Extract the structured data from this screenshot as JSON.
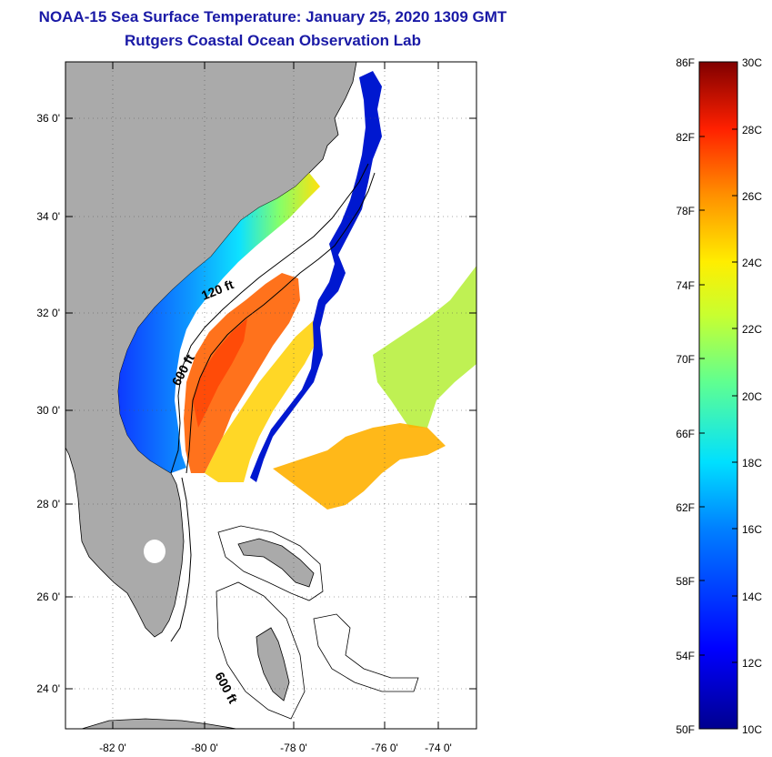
{
  "header": {
    "title": "NOAA-15 Sea Surface Temperature:  January 25, 2020 1309 GMT",
    "subtitle": "Rutgers Coastal Ocean Observation Lab"
  },
  "map": {
    "lat_labels": [
      "36 0'",
      "34 0'",
      "32 0'",
      "30 0'",
      "28 0'",
      "26 0'",
      "24 0'"
    ],
    "lon_labels": [
      "-82 0'",
      "-80 0'",
      "-78 0'",
      "-76 0'",
      "-74 0'"
    ],
    "contours": {
      "c120": "120 ft",
      "c600_a": "600 ft",
      "c600_b": "600 ft"
    },
    "colors": {
      "land": "#aaaaaa",
      "ocean": "#ffffff",
      "grid": "#555555"
    }
  },
  "colorbar": {
    "fahrenheit_labels": [
      "86F",
      "82F",
      "78F",
      "74F",
      "70F",
      "66F",
      "62F",
      "58F",
      "54F",
      "50F"
    ],
    "celsius_labels": [
      "30C",
      "28C",
      "26C",
      "24C",
      "22C",
      "20C",
      "18C",
      "16C",
      "14C",
      "12C",
      "10C"
    ]
  }
}
